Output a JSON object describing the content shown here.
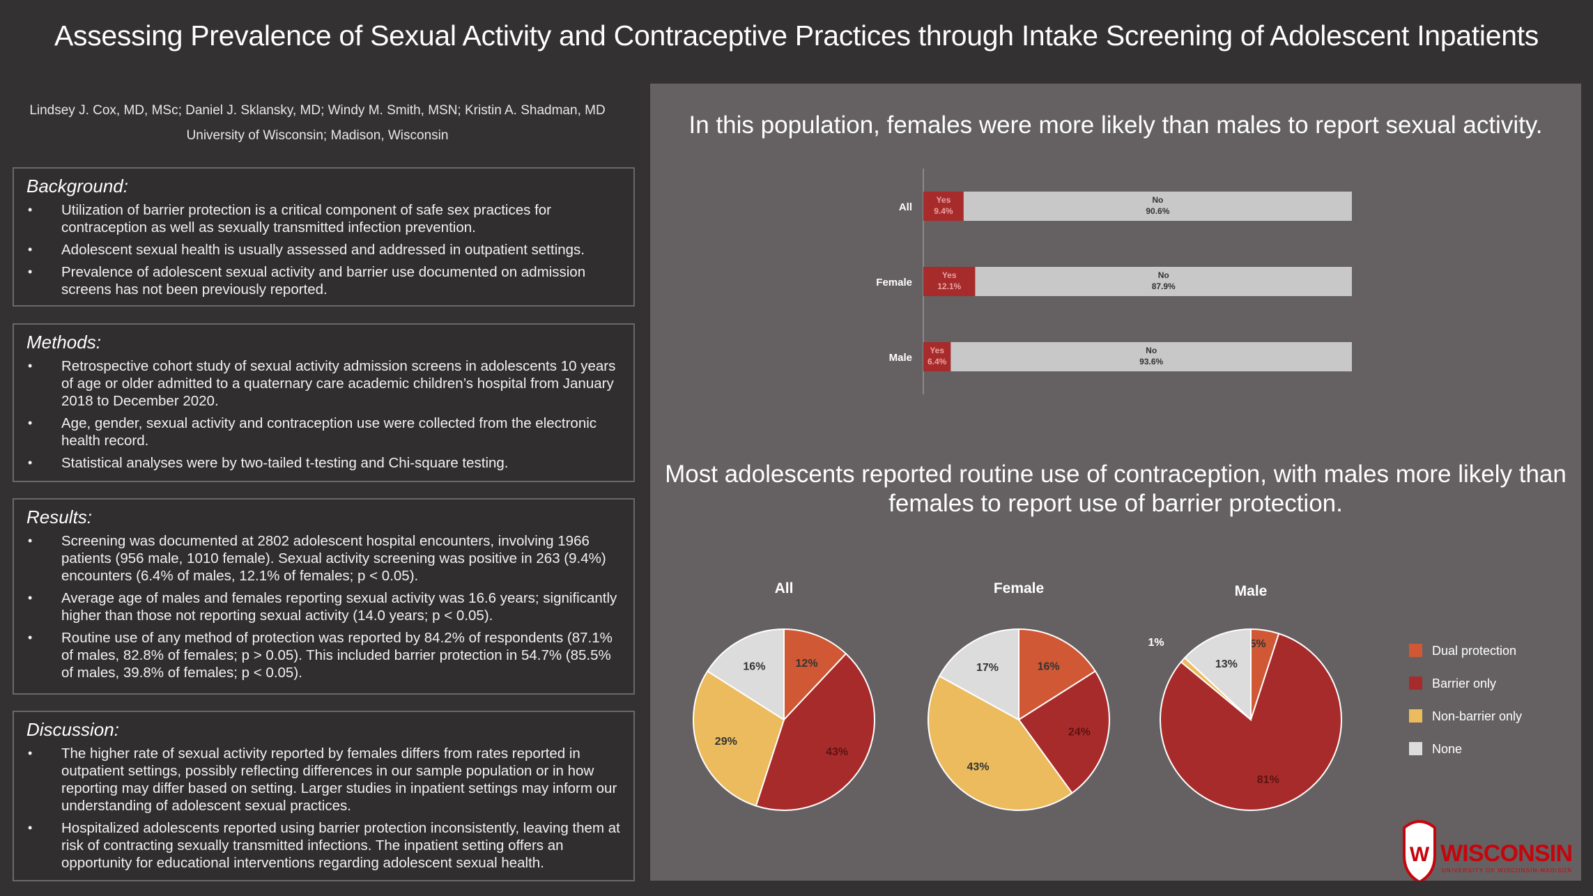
{
  "title": "Assessing Prevalence of Sexual Activity and Contraceptive Practices through Intake Screening of Adolescent Inpatients",
  "authors": "Lindsey J. Cox, MD, MSc; Daniel J. Sklansky, MD; Windy M. Smith, MSN; Kristin A. Shadman, MD",
  "affiliation": "University of Wisconsin; Madison, Wisconsin",
  "background": {
    "title": "Background:",
    "items": [
      "Utilization of barrier protection is a critical component of safe sex practices for contraception as well as sexually transmitted infection prevention.",
      "Adolescent sexual health is usually assessed and addressed in outpatient settings.",
      "Prevalence of adolescent sexual activity and barrier use documented on admission screens has not been previously reported."
    ]
  },
  "methods": {
    "title": "Methods:",
    "items": [
      "Retrospective cohort study of sexual activity admission screens in adolescents 10 years of age or older admitted to a quaternary care academic children’s hospital from January 2018 to December 2020.",
      "Age, gender, sexual activity and contraception use were collected from the electronic health record.",
      "Statistical analyses were by two-tailed t-testing and Chi-square testing."
    ]
  },
  "results": {
    "title": "Results:",
    "items": [
      "Screening was documented at 2802 adolescent hospital encounters, involving 1966 patients (956 male, 1010 female). Sexual activity screening was positive in 263 (9.4%) encounters (6.4% of males, 12.1% of females; p < 0.05).",
      "Average age of males and females reporting sexual activity was 16.6 years; significantly higher than those not reporting sexual activity (14.0 years; p < 0.05).",
      "Routine use of any method of protection was reported by 84.2% of respondents (87.1% of males, 82.8% of females; p > 0.05). This included barrier protection in 54.7% (85.5% of males, 39.8% of females; p < 0.05)."
    ]
  },
  "discussion": {
    "title": "Discussion:",
    "items": [
      "The higher rate of sexual activity reported by females differs from rates reported in outpatient settings, possibly reflecting differences in our sample population or in how reporting may differ based on setting. Larger studies in inpatient settings may inform our understanding of adolescent sexual practices.",
      "Hospitalized adolescents reported using barrier protection inconsistently, leaving them at risk of contracting sexually transmitted infections. The inpatient setting offers an opportunity for educational interventions regarding adolescent sexual health."
    ]
  },
  "heading1": "In this population, females were more likely than males to report sexual activity.",
  "heading2": "Most adolescents reported routine use of contraception, with males more likely than females to report use of barrier protection.",
  "logo_text": "WISCONSIN",
  "logo_subtext": "UNIVERSITY OF WISCONSIN-MADISON",
  "colors": {
    "yes": "#a82b2b",
    "no": "#c8c8c8",
    "dual": "#d05834",
    "barrier": "#a82b2b",
    "nonbarrier": "#ecbb5e",
    "none": "#dcdcdc",
    "panel": "#656162",
    "background": "#333132"
  },
  "chart_data": [
    {
      "type": "bar",
      "orientation": "horizontal-stacked",
      "categories": [
        "All",
        "Female",
        "Male"
      ],
      "series": [
        {
          "name": "Yes",
          "values": [
            9.4,
            12.1,
            6.4
          ],
          "labels": [
            "9.4%",
            "12.1%",
            "6.4%"
          ]
        },
        {
          "name": "No",
          "values": [
            90.6,
            87.9,
            93.6
          ],
          "labels": [
            "90.6%",
            "87.9%",
            "93.6%"
          ]
        }
      ],
      "xlim": [
        0,
        100
      ]
    },
    {
      "type": "pie",
      "title": "All",
      "categories": [
        "Dual protection",
        "Barrier only",
        "Non-barrier only",
        "None"
      ],
      "values": [
        12,
        43,
        29,
        16
      ],
      "labels": [
        "12%",
        "43%",
        "29%",
        "16%"
      ]
    },
    {
      "type": "pie",
      "title": "Female",
      "categories": [
        "Dual protection",
        "Barrier only",
        "Non-barrier only",
        "None"
      ],
      "values": [
        16,
        24,
        43,
        17
      ],
      "labels": [
        "16%",
        "24%",
        "43%",
        "17%"
      ]
    },
    {
      "type": "pie",
      "title": "Male",
      "categories": [
        "Dual protection",
        "Barrier only",
        "Non-barrier only",
        "None"
      ],
      "values": [
        5,
        81,
        1,
        13
      ],
      "labels": [
        "5%",
        "81%",
        "1%",
        "13%"
      ]
    }
  ],
  "legend": [
    "Dual protection",
    "Barrier only",
    "Non-barrier only",
    "None"
  ]
}
